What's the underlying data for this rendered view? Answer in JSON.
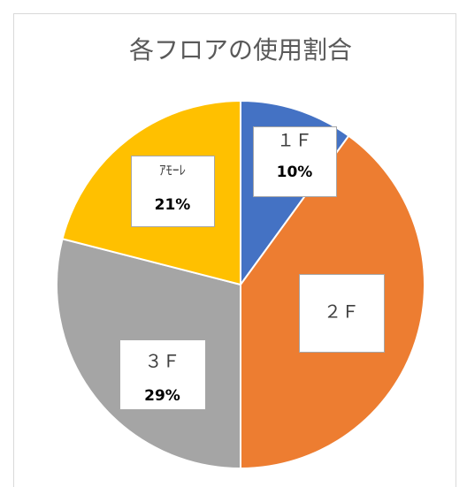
{
  "chart_data": {
    "type": "pie",
    "title": "各フロアの使用割合",
    "categories": [
      "１Ｆ",
      "２Ｆ",
      "３Ｆ",
      "ｱﾓｰﾚ"
    ],
    "values": [
      10,
      40,
      29,
      21
    ],
    "value_labels": [
      "10%",
      null,
      "29%",
      "21%"
    ],
    "colors": [
      "#4472c4",
      "#ed7d31",
      "#a5a5a5",
      "#ffc000"
    ]
  }
}
